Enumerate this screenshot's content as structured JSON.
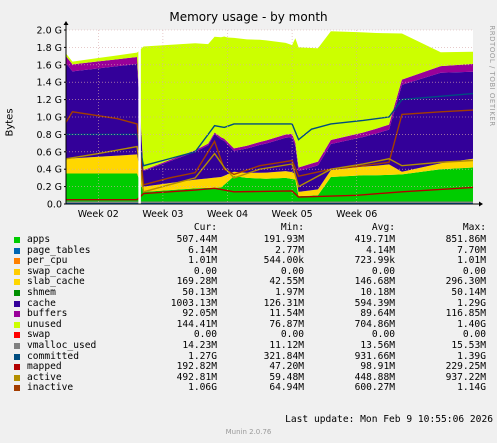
{
  "title": "Memory usage - by month",
  "watermark": "RRDTOOL / TOBI OETIKER",
  "footer": {
    "last_update": "Last update: Mon Feb  9 10:55:06 2026",
    "version": "Munin 2.0.76"
  },
  "legend_headers": {
    "cur": "Cur:",
    "min": "Min:",
    "avg": "Avg:",
    "max": "Max:"
  },
  "legend": [
    {
      "name": "apps",
      "color": "#00cc00",
      "cur": "507.44M",
      "min": "191.93M",
      "avg": "419.71M",
      "max": "851.86M"
    },
    {
      "name": "page_tables",
      "color": "#0066b3",
      "cur": "6.14M",
      "min": "2.77M",
      "avg": "4.14M",
      "max": "7.70M"
    },
    {
      "name": "per_cpu",
      "color": "#ff8000",
      "cur": "1.01M",
      "min": "544.00k",
      "avg": "723.99k",
      "max": "1.01M"
    },
    {
      "name": "swap_cache",
      "color": "#ffcc00",
      "cur": "0.00",
      "min": "0.00",
      "avg": "0.00",
      "max": "0.00"
    },
    {
      "name": "slab_cache",
      "color": "#ffd700",
      "cur": "169.28M",
      "min": "42.55M",
      "avg": "146.68M",
      "max": "296.30M"
    },
    {
      "name": "shmem",
      "color": "#008f00",
      "cur": "50.13M",
      "min": "1.97M",
      "avg": "10.18M",
      "max": "50.14M"
    },
    {
      "name": "cache",
      "color": "#330099",
      "cur": "1003.13M",
      "min": "126.31M",
      "avg": "594.39M",
      "max": "1.29G"
    },
    {
      "name": "buffers",
      "color": "#990099",
      "cur": "92.05M",
      "min": "11.54M",
      "avg": "89.64M",
      "max": "116.85M"
    },
    {
      "name": "unused",
      "color": "#ccff00",
      "cur": "144.41M",
      "min": "76.87M",
      "avg": "704.86M",
      "max": "1.40G"
    },
    {
      "name": "swap",
      "color": "#ff0000",
      "cur": "0.00",
      "min": "0.00",
      "avg": "0.00",
      "max": "0.00"
    },
    {
      "name": "vmalloc_used",
      "color": "#808080",
      "cur": "14.23M",
      "min": "11.12M",
      "avg": "13.56M",
      "max": "15.53M"
    },
    {
      "name": "committed",
      "color": "#004d80",
      "cur": "1.27G",
      "min": "321.84M",
      "avg": "931.66M",
      "max": "1.39G"
    },
    {
      "name": "mapped",
      "color": "#b30000",
      "cur": "192.82M",
      "min": "47.20M",
      "avg": "98.91M",
      "max": "229.25M"
    },
    {
      "name": "active",
      "color": "#b38f00",
      "cur": "492.81M",
      "min": "59.48M",
      "avg": "448.88M",
      "max": "937.22M"
    },
    {
      "name": "inactive",
      "color": "#a33d00",
      "cur": "1.06G",
      "min": "64.94M",
      "avg": "600.27M",
      "max": "1.14G"
    }
  ],
  "chart_data": {
    "type": "area",
    "title": "Memory usage - by month",
    "ylabel": "Bytes",
    "xlabel": "",
    "x_ticks": [
      "Week 02",
      "Week 03",
      "Week 04",
      "Week 05",
      "Week 06"
    ],
    "y_ticks": [
      "0.0",
      "0.2 G",
      "0.4 G",
      "0.6 G",
      "0.8 G",
      "1.0 G",
      "1.2 G",
      "1.4 G",
      "1.6 G",
      "1.8 G",
      "2.0 G"
    ],
    "ylim": [
      0,
      2.0
    ],
    "x_range": [
      0,
      6.3
    ],
    "grid": true,
    "stacked_series": [
      {
        "name": "apps",
        "color": "#00cc00",
        "points": [
          [
            0.0,
            0.35
          ],
          [
            1.1,
            0.35
          ],
          [
            1.2,
            0.14
          ],
          [
            1.6,
            0.16
          ],
          [
            2.0,
            0.18
          ],
          [
            2.4,
            0.19
          ],
          [
            2.6,
            0.32
          ],
          [
            2.8,
            0.3
          ],
          [
            3.1,
            0.29
          ],
          [
            3.4,
            0.3
          ],
          [
            3.55,
            0.28
          ],
          [
            3.6,
            0.09
          ],
          [
            3.9,
            0.1
          ],
          [
            4.1,
            0.31
          ],
          [
            4.6,
            0.33
          ],
          [
            4.8,
            0.33
          ],
          [
            5.2,
            0.34
          ],
          [
            5.8,
            0.4
          ],
          [
            6.3,
            0.42
          ]
        ]
      },
      {
        "name": "slab_cache",
        "color": "#ffd700",
        "points": [
          [
            0.0,
            0.17
          ],
          [
            1.1,
            0.22
          ],
          [
            1.2,
            0.06
          ],
          [
            2.0,
            0.1
          ],
          [
            2.4,
            0.12
          ],
          [
            2.6,
            0.05
          ],
          [
            3.1,
            0.07
          ],
          [
            3.5,
            0.08
          ],
          [
            3.6,
            0.05
          ],
          [
            4.1,
            0.08
          ],
          [
            4.6,
            0.1
          ],
          [
            5.0,
            0.12
          ],
          [
            5.2,
            0.03
          ],
          [
            6.3,
            0.1
          ]
        ]
      },
      {
        "name": "cache",
        "color": "#330099",
        "points": [
          [
            0.0,
            1.1
          ],
          [
            0.1,
            1.0
          ],
          [
            1.1,
            1.04
          ],
          [
            1.2,
            0.18
          ],
          [
            1.6,
            0.25
          ],
          [
            2.0,
            0.32
          ],
          [
            2.2,
            0.38
          ],
          [
            2.3,
            0.5
          ],
          [
            2.45,
            0.4
          ],
          [
            2.6,
            0.24
          ],
          [
            3.0,
            0.32
          ],
          [
            3.5,
            0.4
          ],
          [
            3.6,
            0.24
          ],
          [
            4.1,
            0.3
          ],
          [
            4.6,
            0.34
          ],
          [
            5.0,
            0.4
          ],
          [
            5.2,
            1.0
          ],
          [
            5.8,
            1.04
          ],
          [
            6.3,
            1.0
          ]
        ]
      },
      {
        "name": "buffers",
        "color": "#990099",
        "points": [
          [
            0.0,
            0.08
          ],
          [
            1.1,
            0.08
          ],
          [
            1.2,
            0.01
          ],
          [
            2.3,
            0.02
          ],
          [
            2.6,
            0.03
          ],
          [
            3.6,
            0.04
          ],
          [
            5.2,
            0.06
          ],
          [
            6.3,
            0.09
          ]
        ]
      },
      {
        "name": "unused",
        "color": "#ccff00",
        "points": [
          [
            0.0,
            0.03
          ],
          [
            1.1,
            0.05
          ],
          [
            1.2,
            1.42
          ],
          [
            2.0,
            1.23
          ],
          [
            2.3,
            1.1
          ],
          [
            2.5,
            1.2
          ],
          [
            2.6,
            1.27
          ],
          [
            3.1,
            1.15
          ],
          [
            3.5,
            1.02
          ],
          [
            3.6,
            1.38
          ],
          [
            4.1,
            1.25
          ],
          [
            4.6,
            1.15
          ],
          [
            5.0,
            1.05
          ],
          [
            5.2,
            0.53
          ],
          [
            5.8,
            0.16
          ],
          [
            6.3,
            0.14
          ]
        ]
      }
    ],
    "line_series": [
      {
        "name": "committed",
        "color": "#004d80",
        "points": [
          [
            0.0,
            0.8
          ],
          [
            1.1,
            0.8
          ],
          [
            1.2,
            0.44
          ],
          [
            1.6,
            0.52
          ],
          [
            2.0,
            0.6
          ],
          [
            2.3,
            0.9
          ],
          [
            2.45,
            0.88
          ],
          [
            2.6,
            0.92
          ],
          [
            3.1,
            0.92
          ],
          [
            3.5,
            0.92
          ],
          [
            3.6,
            0.74
          ],
          [
            3.8,
            0.86
          ],
          [
            4.1,
            0.92
          ],
          [
            4.6,
            0.96
          ],
          [
            5.0,
            1.0
          ],
          [
            5.2,
            1.2
          ],
          [
            6.3,
            1.27
          ]
        ]
      },
      {
        "name": "inactive",
        "color": "#a33d00",
        "points": [
          [
            0.0,
            0.94
          ],
          [
            0.1,
            1.06
          ],
          [
            0.8,
            0.98
          ],
          [
            1.1,
            0.92
          ],
          [
            1.2,
            0.22
          ],
          [
            1.6,
            0.3
          ],
          [
            2.0,
            0.36
          ],
          [
            2.3,
            0.72
          ],
          [
            2.45,
            0.4
          ],
          [
            2.6,
            0.34
          ],
          [
            3.0,
            0.44
          ],
          [
            3.5,
            0.5
          ],
          [
            3.6,
            0.32
          ],
          [
            4.1,
            0.4
          ],
          [
            4.6,
            0.44
          ],
          [
            5.0,
            0.48
          ],
          [
            5.2,
            1.03
          ],
          [
            5.8,
            1.06
          ],
          [
            6.3,
            1.08
          ]
        ]
      },
      {
        "name": "active",
        "color": "#b38f00",
        "points": [
          [
            0.0,
            0.52
          ],
          [
            0.5,
            0.58
          ],
          [
            1.1,
            0.66
          ],
          [
            1.2,
            0.14
          ],
          [
            1.6,
            0.22
          ],
          [
            2.0,
            0.3
          ],
          [
            2.3,
            0.58
          ],
          [
            2.45,
            0.42
          ],
          [
            2.6,
            0.3
          ],
          [
            3.0,
            0.4
          ],
          [
            3.5,
            0.46
          ],
          [
            3.6,
            0.2
          ],
          [
            4.1,
            0.4
          ],
          [
            4.6,
            0.46
          ],
          [
            5.0,
            0.52
          ],
          [
            5.2,
            0.44
          ],
          [
            5.8,
            0.48
          ],
          [
            6.3,
            0.5
          ]
        ]
      },
      {
        "name": "mapped",
        "color": "#b30000",
        "points": [
          [
            0.0,
            0.05
          ],
          [
            1.1,
            0.05
          ],
          [
            1.2,
            0.12
          ],
          [
            2.0,
            0.16
          ],
          [
            2.3,
            0.18
          ],
          [
            2.6,
            0.14
          ],
          [
            3.5,
            0.15
          ],
          [
            3.6,
            0.08
          ],
          [
            4.5,
            0.1
          ],
          [
            5.2,
            0.14
          ],
          [
            6.3,
            0.19
          ]
        ]
      },
      {
        "name": "page_tables",
        "color": "#0066b3",
        "points": [
          [
            0.0,
            0.01
          ],
          [
            6.3,
            0.01
          ]
        ]
      },
      {
        "name": "vmalloc_used",
        "color": "#808080",
        "points": [
          [
            0.0,
            0.02
          ],
          [
            6.3,
            0.02
          ]
        ]
      }
    ]
  }
}
